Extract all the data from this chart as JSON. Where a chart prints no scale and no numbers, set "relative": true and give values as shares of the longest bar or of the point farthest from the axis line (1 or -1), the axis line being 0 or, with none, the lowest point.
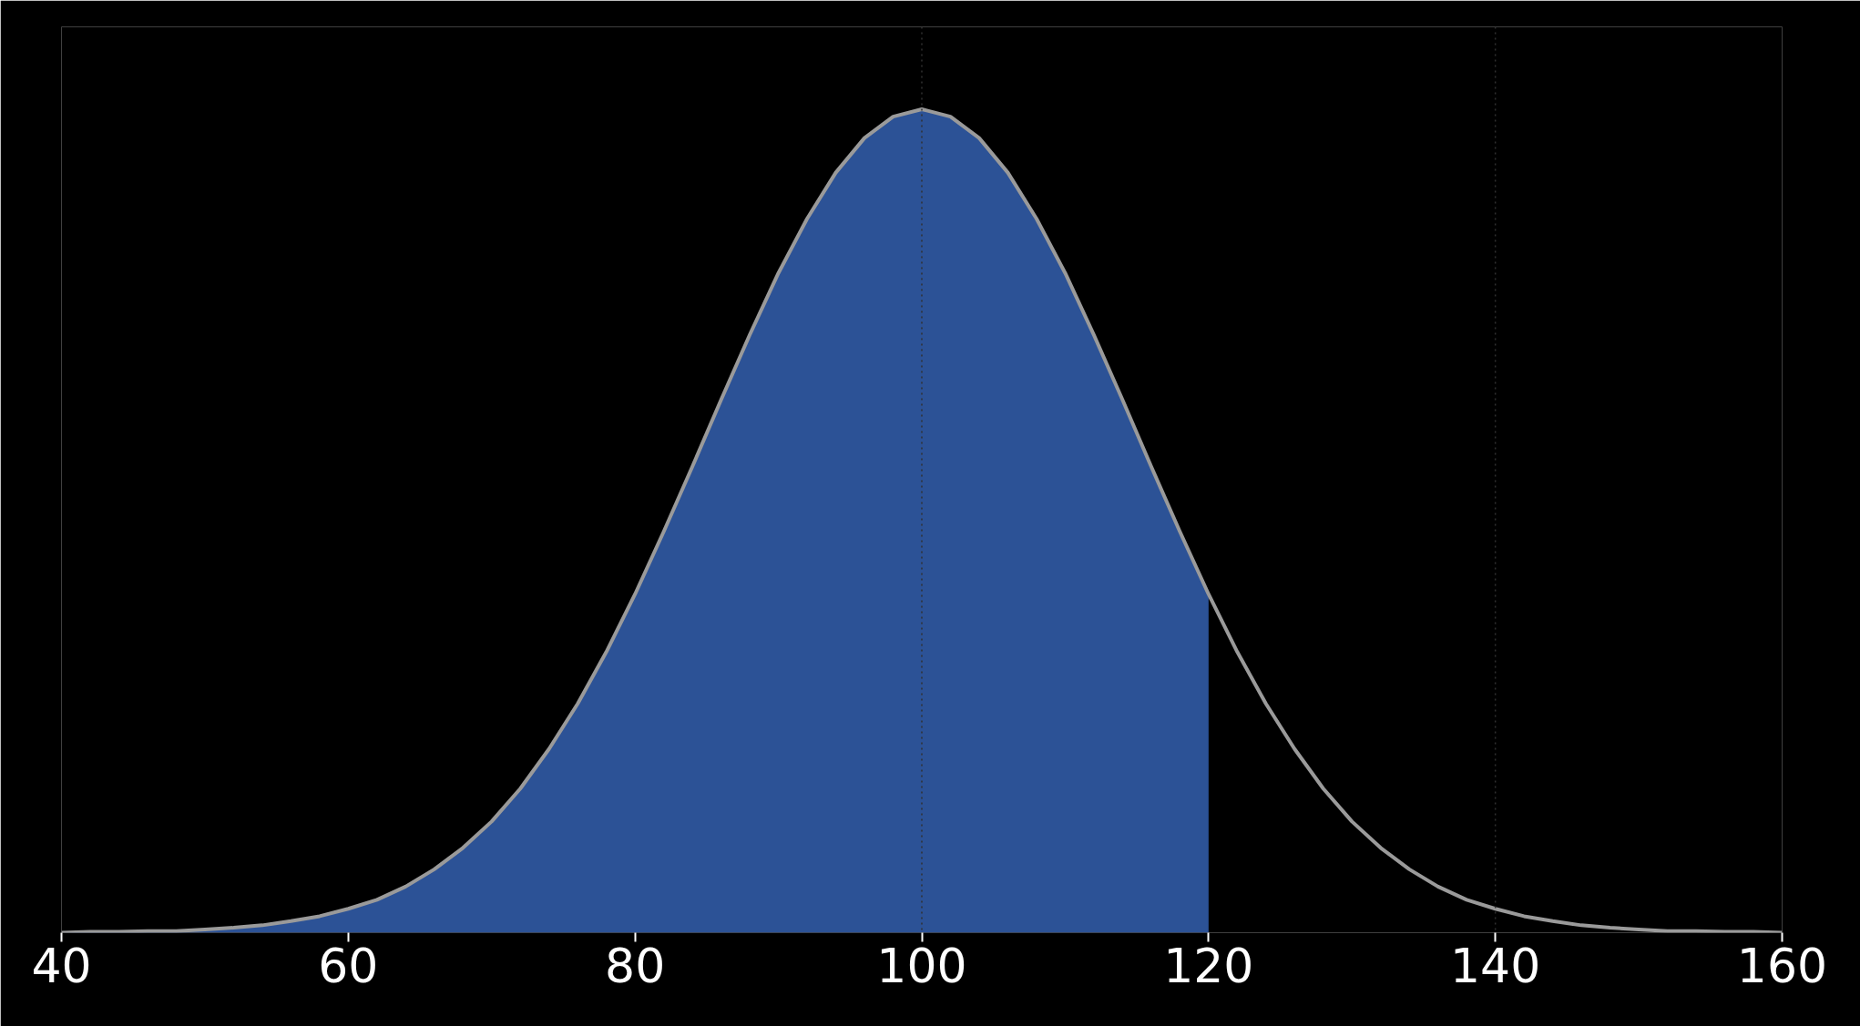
{
  "chart_data": {
    "type": "line",
    "relative": true,
    "grid": false,
    "xlim": [
      40,
      160
    ],
    "xticks": [
      40,
      60,
      80,
      100,
      120,
      140,
      160
    ],
    "ref_lines": [
      {
        "axis": "x",
        "value": 100,
        "color": "#303030",
        "line_style": "dotted"
      },
      {
        "axis": "x",
        "value": 140,
        "color": "#303030",
        "line_style": "dotted"
      }
    ],
    "series": [
      {
        "type": "area",
        "color": "#2c5296",
        "x": [
          40,
          42,
          44,
          46,
          48,
          50,
          52,
          54,
          56,
          58,
          60,
          62,
          64,
          66,
          68,
          70,
          72,
          74,
          76,
          78,
          80,
          82,
          84,
          86,
          88,
          90,
          92,
          94,
          96,
          98,
          100,
          102,
          104,
          106,
          108,
          110,
          112,
          114,
          116,
          118,
          120
        ],
        "values": [
          0,
          0.001,
          0.001,
          0.002,
          0.002,
          0.004,
          0.006,
          0.009,
          0.014,
          0.02,
          0.029,
          0.04,
          0.056,
          0.077,
          0.103,
          0.135,
          0.175,
          0.223,
          0.278,
          0.341,
          0.411,
          0.487,
          0.566,
          0.647,
          0.726,
          0.801,
          0.867,
          0.923,
          0.965,
          0.991,
          1,
          0.991,
          0.965,
          0.923,
          0.867,
          0.801,
          0.726,
          0.647,
          0.566,
          0.487,
          0.411
        ]
      },
      {
        "color": "#9a9a9a",
        "x": [
          40,
          42,
          44,
          46,
          48,
          50,
          52,
          54,
          56,
          58,
          60,
          62,
          64,
          66,
          68,
          70,
          72,
          74,
          76,
          78,
          80,
          82,
          84,
          86,
          88,
          90,
          92,
          94,
          96,
          98,
          100,
          102,
          104,
          106,
          108,
          110,
          112,
          114,
          116,
          118,
          120,
          122,
          124,
          126,
          128,
          130,
          132,
          134,
          136,
          138,
          140,
          142,
          144,
          146,
          148,
          150,
          152,
          154,
          156,
          158,
          160
        ],
        "values": [
          0,
          0.001,
          0.001,
          0.002,
          0.002,
          0.004,
          0.006,
          0.009,
          0.014,
          0.02,
          0.029,
          0.04,
          0.056,
          0.077,
          0.103,
          0.135,
          0.175,
          0.223,
          0.278,
          0.341,
          0.411,
          0.487,
          0.566,
          0.647,
          0.726,
          0.801,
          0.867,
          0.923,
          0.965,
          0.991,
          1,
          0.991,
          0.965,
          0.923,
          0.867,
          0.801,
          0.726,
          0.647,
          0.566,
          0.487,
          0.411,
          0.341,
          0.278,
          0.223,
          0.175,
          0.135,
          0.103,
          0.077,
          0.056,
          0.04,
          0.029,
          0.02,
          0.014,
          0.009,
          0.006,
          0.004,
          0.002,
          0.002,
          0.001,
          0.001,
          0
        ]
      }
    ]
  }
}
